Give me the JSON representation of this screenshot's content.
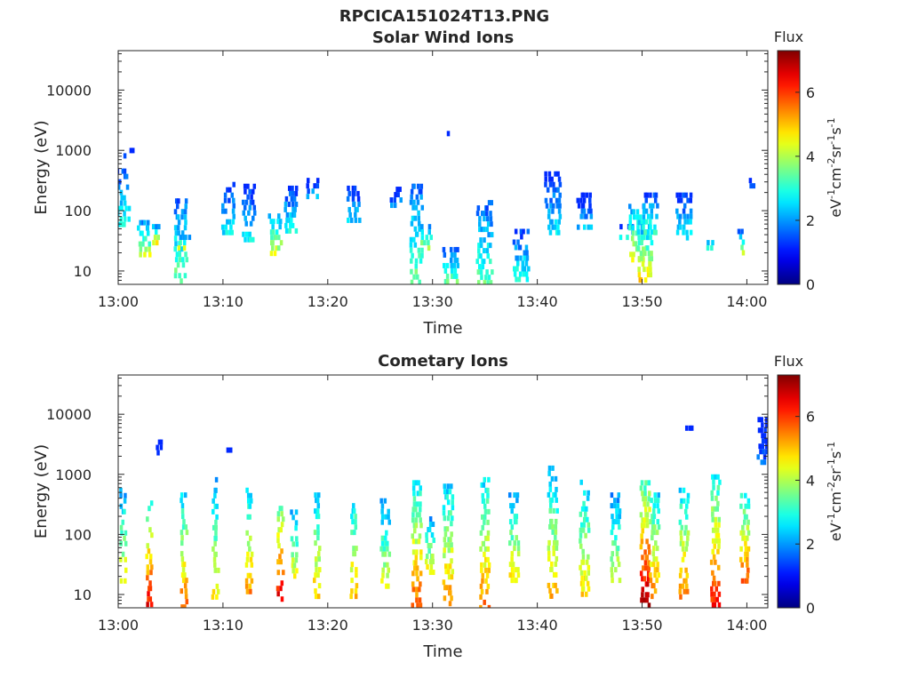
{
  "figure_title": "RPCICA151024T13.PNG",
  "chart_data": [
    {
      "type": "heatmap",
      "title": "Solar Wind Ions",
      "xlabel": "Time",
      "ylabel": "Energy (eV)",
      "x_ticks": [
        "13:00",
        "13:10",
        "13:20",
        "13:30",
        "13:40",
        "13:50",
        "14:00"
      ],
      "y_ticks": [
        "10",
        "100",
        "1000",
        "10000"
      ],
      "y_scale": "log",
      "ylim": [
        6,
        45000
      ],
      "colorbar": {
        "title": "Flux",
        "label": "eV-1cm-2sr-1s-1",
        "ticks": [
          "0",
          "2",
          "4",
          "6"
        ],
        "range": [
          0,
          7.3
        ]
      },
      "colormap": "jet",
      "events": [
        {
          "t": 0.5,
          "lo": 50,
          "hi": 500,
          "val": 3.0
        },
        {
          "t": 1.0,
          "lo": 700,
          "hi": 1100,
          "val": 1.5
        },
        {
          "t": 2.5,
          "lo": 18,
          "hi": 70,
          "val": 4.2
        },
        {
          "t": 3.5,
          "lo": 25,
          "hi": 60,
          "val": 4.6
        },
        {
          "t": 6.0,
          "lo": 6,
          "hi": 160,
          "val": 3.6
        },
        {
          "t": 6.3,
          "lo": 20,
          "hi": 40,
          "val": 4.0
        },
        {
          "t": 10.5,
          "lo": 40,
          "hi": 300,
          "val": 2.6
        },
        {
          "t": 12.5,
          "lo": 30,
          "hi": 280,
          "val": 2.8
        },
        {
          "t": 15.0,
          "lo": 18,
          "hi": 90,
          "val": 4.3
        },
        {
          "t": 16.5,
          "lo": 40,
          "hi": 260,
          "val": 2.8
        },
        {
          "t": 18.5,
          "lo": 150,
          "hi": 350,
          "val": 2.2
        },
        {
          "t": 22.5,
          "lo": 60,
          "hi": 260,
          "val": 2.4
        },
        {
          "t": 26.5,
          "lo": 120,
          "hi": 250,
          "val": 2.0
        },
        {
          "t": 28.5,
          "lo": 6,
          "hi": 280,
          "val": 3.6
        },
        {
          "t": 29.5,
          "lo": 20,
          "hi": 60,
          "val": 4.0
        },
        {
          "t": 31.5,
          "lo": 1900,
          "hi": 2100,
          "val": 1.5
        },
        {
          "t": 31.8,
          "lo": 6,
          "hi": 25,
          "val": 3.5
        },
        {
          "t": 35.0,
          "lo": 6,
          "hi": 150,
          "val": 3.4
        },
        {
          "t": 38.5,
          "lo": 6,
          "hi": 50,
          "val": 3.0
        },
        {
          "t": 41.5,
          "lo": 40,
          "hi": 450,
          "val": 2.6
        },
        {
          "t": 44.5,
          "lo": 50,
          "hi": 200,
          "val": 2.3
        },
        {
          "t": 48.5,
          "lo": 30,
          "hi": 60,
          "val": 3.2
        },
        {
          "t": 49.5,
          "lo": 15,
          "hi": 130,
          "val": 4.4
        },
        {
          "t": 50.3,
          "lo": 6,
          "hi": 60,
          "val": 4.8
        },
        {
          "t": 50.8,
          "lo": 40,
          "hi": 200,
          "val": 3.2
        },
        {
          "t": 54.0,
          "lo": 30,
          "hi": 200,
          "val": 2.8
        },
        {
          "t": 56.5,
          "lo": 20,
          "hi": 40,
          "val": 2.8
        },
        {
          "t": 59.5,
          "lo": 18,
          "hi": 50,
          "val": 4.0
        },
        {
          "t": 60.5,
          "lo": 250,
          "hi": 350,
          "val": 1.8
        }
      ]
    },
    {
      "type": "heatmap",
      "title": "Cometary Ions",
      "xlabel": "Time",
      "ylabel": "Energy (eV)",
      "x_ticks": [
        "13:00",
        "13:10",
        "13:20",
        "13:30",
        "13:40",
        "13:50",
        "14:00"
      ],
      "y_ticks": [
        "10",
        "100",
        "1000",
        "10000"
      ],
      "y_scale": "log",
      "ylim": [
        6,
        45000
      ],
      "colorbar": {
        "title": "Flux",
        "label": "eV-1cm-2sr-1s-1",
        "ticks": [
          "0",
          "2",
          "4",
          "6"
        ],
        "range": [
          0,
          7.3
        ]
      },
      "colormap": "jet",
      "events": [
        {
          "t": 0.5,
          "lo": 15,
          "hi": 600,
          "val": 4.6
        },
        {
          "t": 3.0,
          "lo": 6,
          "hi": 450,
          "val": 6.4
        },
        {
          "t": 4.0,
          "lo": 2000,
          "hi": 3800,
          "val": 1.5
        },
        {
          "t": 6.3,
          "lo": 6,
          "hi": 500,
          "val": 5.6
        },
        {
          "t": 9.3,
          "lo": 8,
          "hi": 900,
          "val": 4.6
        },
        {
          "t": 10.5,
          "lo": 2300,
          "hi": 2800,
          "val": 1.5
        },
        {
          "t": 12.5,
          "lo": 10,
          "hi": 600,
          "val": 5.4
        },
        {
          "t": 15.5,
          "lo": 8,
          "hi": 450,
          "val": 6.6
        },
        {
          "t": 16.8,
          "lo": 20,
          "hi": 260,
          "val": 4.5
        },
        {
          "t": 19.0,
          "lo": 8,
          "hi": 500,
          "val": 5.0
        },
        {
          "t": 22.5,
          "lo": 8,
          "hi": 500,
          "val": 5.2
        },
        {
          "t": 25.5,
          "lo": 12,
          "hi": 400,
          "val": 4.4
        },
        {
          "t": 28.5,
          "lo": 6,
          "hi": 800,
          "val": 5.8
        },
        {
          "t": 29.8,
          "lo": 20,
          "hi": 200,
          "val": 4.6
        },
        {
          "t": 31.5,
          "lo": 6,
          "hi": 700,
          "val": 5.4
        },
        {
          "t": 35.0,
          "lo": 6,
          "hi": 900,
          "val": 5.6
        },
        {
          "t": 37.8,
          "lo": 15,
          "hi": 500,
          "val": 4.8
        },
        {
          "t": 41.5,
          "lo": 8,
          "hi": 1400,
          "val": 5.0
        },
        {
          "t": 44.5,
          "lo": 10,
          "hi": 1000,
          "val": 4.8
        },
        {
          "t": 47.5,
          "lo": 15,
          "hi": 500,
          "val": 4.4
        },
        {
          "t": 50.3,
          "lo": 6,
          "hi": 800,
          "val": 7.1
        },
        {
          "t": 51.2,
          "lo": 8,
          "hi": 500,
          "val": 5.6
        },
        {
          "t": 54.0,
          "lo": 8,
          "hi": 600,
          "val": 5.6
        },
        {
          "t": 57.0,
          "lo": 6,
          "hi": 1000,
          "val": 6.2
        },
        {
          "t": 59.8,
          "lo": 15,
          "hi": 600,
          "val": 5.8
        },
        {
          "t": 61.5,
          "lo": 1500,
          "hi": 9000,
          "val": 1.6
        },
        {
          "t": 54.5,
          "lo": 6000,
          "hi": 6500,
          "val": 1.5
        }
      ]
    }
  ]
}
